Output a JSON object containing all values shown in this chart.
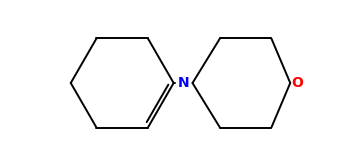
{
  "background_color": "#ffffff",
  "bond_color": "#000000",
  "N_color": "#0000ff",
  "O_color": "#ff0000",
  "N_label": "N",
  "O_label": "O",
  "figsize": [
    3.61,
    1.66
  ],
  "dpi": 100,
  "linewidth": 1.4,
  "font_size": 10,
  "hex_r": 0.3,
  "xlim": [
    -0.95,
    0.95
  ],
  "ylim": [
    -0.48,
    0.48
  ]
}
